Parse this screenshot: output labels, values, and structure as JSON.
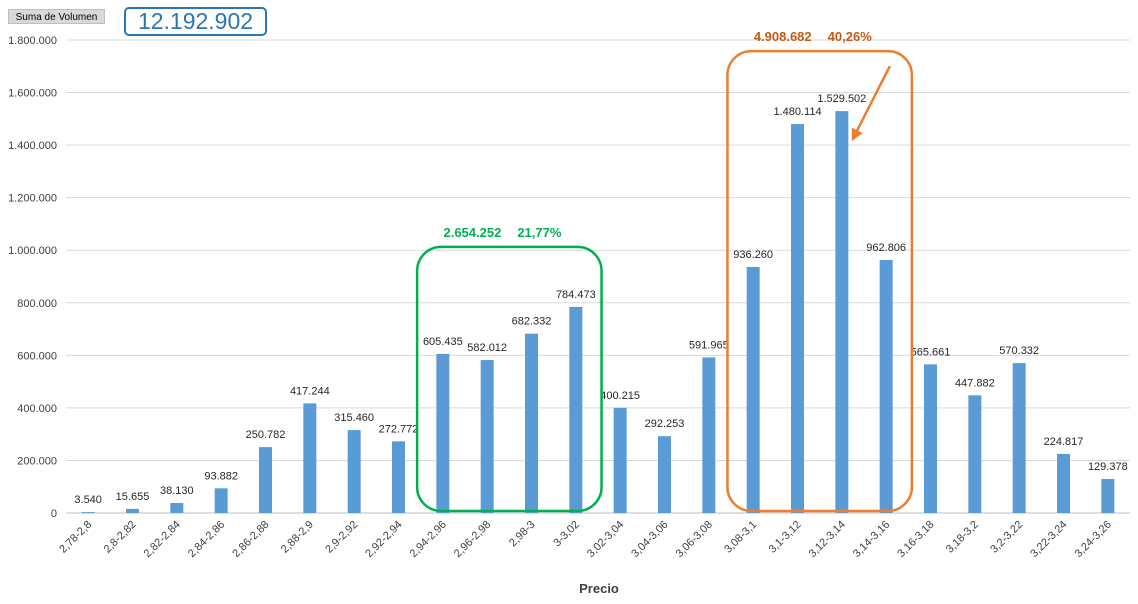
{
  "field_button": {
    "label": "Suma de Volumen"
  },
  "total": {
    "value": "12.192.902"
  },
  "chart_data": {
    "type": "bar",
    "xlabel": "Precio",
    "ylabel": "",
    "ylim": [
      0,
      1800000
    ],
    "yticks": [
      0,
      200000,
      400000,
      600000,
      800000,
      1000000,
      1200000,
      1400000,
      1600000,
      1800000
    ],
    "ytick_labels": [
      "0",
      "200.000",
      "400.000",
      "600.000",
      "800.000",
      "1.000.000",
      "1.200.000",
      "1.400.000",
      "1.600.000",
      "1.800.000"
    ],
    "grid": true,
    "bar_color": "#5b9bd5",
    "categories": [
      "2,78-2,8",
      "2,8-2,82",
      "2,82-2,84",
      "2,84-2,86",
      "2,86-2,88",
      "2,88-2,9",
      "2,9-2,92",
      "2,92-2,94",
      "2,94-2,96",
      "2,96-2,98",
      "2,98-3",
      "3-3,02",
      "3,02-3,04",
      "3,04-3,06",
      "3,06-3,08",
      "3,08-3,1",
      "3,1-3,12",
      "3,12-3,14",
      "3,14-3,16",
      "3,16-3,18",
      "3,18-3,2",
      "3,2-3,22",
      "3,22-3,24",
      "3,24-3,26"
    ],
    "values": [
      3540,
      15655,
      38130,
      93882,
      250782,
      417244,
      315460,
      272772,
      605435,
      582012,
      682332,
      784473,
      400215,
      292253,
      591965,
      936260,
      1480114,
      1529502,
      962806,
      565661,
      447882,
      570332,
      224817,
      129378
    ],
    "data_labels": [
      "3.540",
      "15.655",
      "38.130",
      "93.882",
      "250.782",
      "417.244",
      "315.460",
      "272.772",
      "605.435",
      "582.012",
      "682.332",
      "784.473",
      "400.215",
      "292.253",
      "591.965",
      "936.260",
      "1.480.114",
      "1.529.502",
      "962.806",
      "565.661",
      "447.882",
      "570.332",
      "224.817",
      "129.378"
    ],
    "annotations": [
      {
        "name": "green-group",
        "from_index": 8,
        "to_index": 11,
        "color": "#00b050",
        "sum_label": "2.654.252",
        "pct_label": "21,77%"
      },
      {
        "name": "orange-group",
        "from_index": 15,
        "to_index": 18,
        "color": "#ed7d31",
        "sum_label": "4.908.682",
        "pct_label": "40,26%",
        "arrow_to_index": 17
      }
    ]
  }
}
